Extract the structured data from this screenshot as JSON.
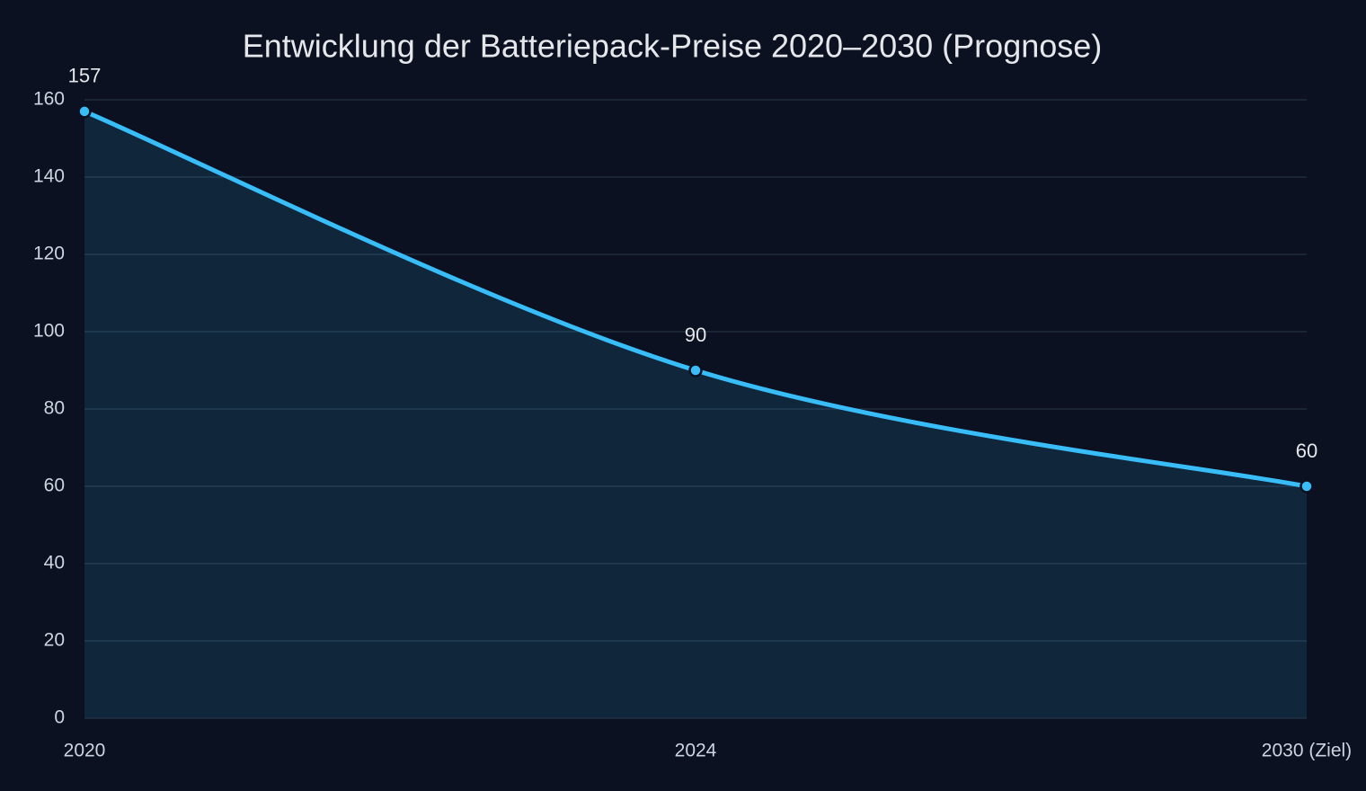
{
  "chart_data": {
    "type": "line",
    "title": "Entwicklung der Batteriepack-Preise 2020–2030 (Prognose)",
    "categories": [
      "2020",
      "2024",
      "2030 (Ziel)"
    ],
    "values": [
      157,
      90,
      60
    ],
    "color": "#38bdf8",
    "ylim": [
      0,
      160
    ],
    "yticks": [
      0,
      20,
      40,
      60,
      80,
      100,
      120,
      140,
      160
    ],
    "grid": true
  }
}
